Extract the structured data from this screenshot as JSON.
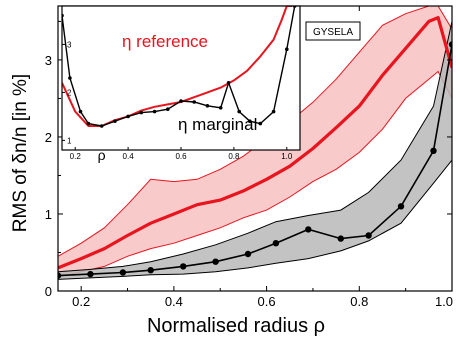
{
  "chart_data": {
    "type": "line",
    "tag": "GYSELA",
    "xlabel": "Normalised radius  ρ",
    "ylabel": "RMS of δn/n  [in %]",
    "xlim": [
      0.15,
      1.0
    ],
    "ylim": [
      0,
      3.7
    ],
    "xticks": [
      0.2,
      0.4,
      0.6,
      0.8,
      1.0
    ],
    "xtick_labels": [
      "0.2",
      "0.4",
      "0.6",
      "0.8",
      "1.0"
    ],
    "yticks": [
      0,
      1,
      2,
      3
    ],
    "ytick_labels": [
      "0",
      "1",
      "2",
      "3"
    ],
    "colors": {
      "reference": "#e8141e",
      "reference_band": "#f7b8b8",
      "marginal": "#000000",
      "marginal_band": "#b8b8b8"
    },
    "series": [
      {
        "key": "reference",
        "x": [
          0.15,
          0.2,
          0.25,
          0.3,
          0.35,
          0.4,
          0.45,
          0.5,
          0.55,
          0.6,
          0.65,
          0.7,
          0.75,
          0.8,
          0.85,
          0.9,
          0.95,
          0.97,
          1.0
        ],
        "y": [
          0.3,
          0.42,
          0.55,
          0.72,
          0.88,
          1.0,
          1.12,
          1.18,
          1.3,
          1.45,
          1.62,
          1.85,
          2.12,
          2.4,
          2.8,
          3.15,
          3.5,
          3.55,
          2.9
        ],
        "upper": [
          0.45,
          0.62,
          0.82,
          1.12,
          1.45,
          1.42,
          1.45,
          1.58,
          1.75,
          1.98,
          2.2,
          2.45,
          2.75,
          3.1,
          3.45,
          3.6,
          3.7,
          3.7,
          3.4
        ],
        "lower": [
          0.18,
          0.25,
          0.32,
          0.45,
          0.55,
          0.62,
          0.72,
          0.82,
          0.95,
          1.05,
          1.22,
          1.42,
          1.58,
          1.8,
          2.1,
          2.5,
          2.75,
          2.85,
          2.5
        ]
      },
      {
        "key": "marginal",
        "x": [
          0.15,
          0.22,
          0.29,
          0.35,
          0.42,
          0.49,
          0.56,
          0.62,
          0.69,
          0.76,
          0.82,
          0.89,
          0.96,
          1.0
        ],
        "y": [
          0.2,
          0.22,
          0.24,
          0.27,
          0.32,
          0.38,
          0.48,
          0.62,
          0.8,
          0.68,
          0.72,
          1.1,
          1.82,
          3.2
        ],
        "upper": [
          0.25,
          0.28,
          0.32,
          0.38,
          0.48,
          0.6,
          0.75,
          0.9,
          0.98,
          1.05,
          1.28,
          1.7,
          2.4,
          3.5
        ],
        "lower": [
          0.15,
          0.17,
          0.19,
          0.21,
          0.22,
          0.25,
          0.3,
          0.36,
          0.42,
          0.52,
          0.65,
          0.88,
          1.4,
          1.7
        ]
      }
    ],
    "inset": {
      "label_reference": "η  reference",
      "label_marginal": "η  marginal",
      "xlabel": "ρ",
      "xlim": [
        0.15,
        1.05
      ],
      "ylim": [
        0.8,
        3.8
      ],
      "xticks": [
        0.2,
        0.4,
        0.6,
        0.8,
        1.0
      ],
      "xtick_labels": [
        "0.2",
        "0.4",
        "0.6",
        "0.8",
        "1.0"
      ],
      "yticks": [
        1,
        2,
        3
      ],
      "ytick_labels": [
        "1",
        "2",
        "3"
      ],
      "series": [
        {
          "key": "reference",
          "x": [
            0.15,
            0.2,
            0.25,
            0.3,
            0.35,
            0.4,
            0.45,
            0.5,
            0.55,
            0.6,
            0.65,
            0.7,
            0.75,
            0.8,
            0.85,
            0.9,
            0.95,
            0.98,
            1.0,
            1.02
          ],
          "y": [
            2.2,
            1.6,
            1.3,
            1.3,
            1.42,
            1.5,
            1.62,
            1.7,
            1.75,
            1.8,
            1.9,
            2.0,
            2.1,
            2.25,
            2.45,
            2.75,
            3.1,
            3.5,
            3.8,
            3.8
          ]
        },
        {
          "key": "marginal",
          "x": [
            0.15,
            0.18,
            0.22,
            0.25,
            0.3,
            0.35,
            0.4,
            0.45,
            0.5,
            0.55,
            0.6,
            0.65,
            0.7,
            0.75,
            0.78,
            0.82,
            0.86,
            0.9,
            0.95,
            1.0,
            1.03
          ],
          "y": [
            3.6,
            2.3,
            1.6,
            1.35,
            1.3,
            1.4,
            1.5,
            1.58,
            1.6,
            1.65,
            1.82,
            1.8,
            1.72,
            1.68,
            2.2,
            1.6,
            1.4,
            1.35,
            1.6,
            2.9,
            3.8
          ]
        }
      ]
    }
  }
}
